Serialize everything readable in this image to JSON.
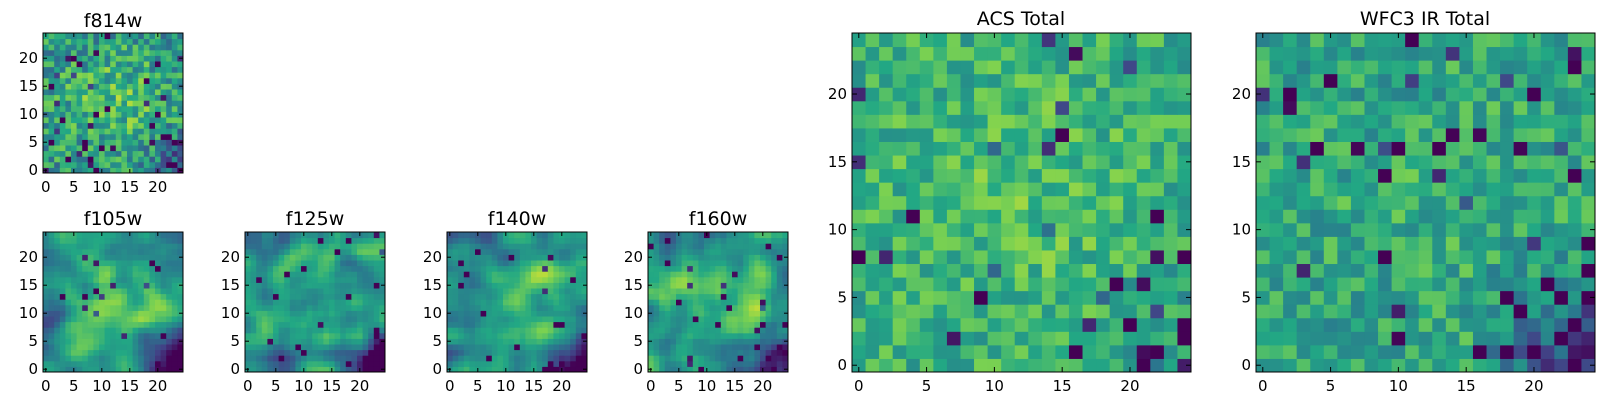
{
  "figure": {
    "colormap": "viridis",
    "colormap_stops": [
      "#440154",
      "#414487",
      "#2a788e",
      "#22a884",
      "#7ad151",
      "#fde725"
    ],
    "frame_color": "#000000",
    "background": "#ffffff"
  },
  "chart_data": [
    {
      "type": "heatmap",
      "title": "f814w",
      "grid_size": 25,
      "x_ticks": [
        "0",
        "5",
        "10",
        "15",
        "20"
      ],
      "y_ticks": [
        "0",
        "5",
        "10",
        "15",
        "20"
      ],
      "xlim": [
        -0.5,
        24.5
      ],
      "ylim": [
        -0.5,
        24.5
      ],
      "pattern": "noisy flux stamp, bright diffuse centre, dark pixels near lower-right",
      "seed": 814
    },
    {
      "type": "heatmap",
      "title": "f105w",
      "grid_size": 25,
      "x_ticks": [
        "0",
        "5",
        "10",
        "15",
        "20"
      ],
      "y_ticks": [
        "0",
        "5",
        "10",
        "15",
        "20"
      ],
      "xlim": [
        -0.5,
        24.5
      ],
      "ylim": [
        -0.5,
        24.5
      ],
      "pattern": "smooth blobs, bright centre, dark lower-right corner",
      "seed": 105
    },
    {
      "type": "heatmap",
      "title": "f125w",
      "grid_size": 25,
      "x_ticks": [
        "0",
        "5",
        "10",
        "15",
        "20"
      ],
      "y_ticks": [
        "0",
        "5",
        "10",
        "15",
        "20"
      ],
      "xlim": [
        -0.5,
        24.5
      ],
      "ylim": [
        -0.5,
        24.5
      ],
      "pattern": "smooth blobs, mixed green, dark lower-right corner",
      "seed": 125
    },
    {
      "type": "heatmap",
      "title": "f140w",
      "grid_size": 25,
      "x_ticks": [
        "0",
        "5",
        "10",
        "15",
        "20"
      ],
      "y_ticks": [
        "0",
        "5",
        "10",
        "15",
        "20"
      ],
      "xlim": [
        -0.5,
        24.5
      ],
      "ylim": [
        -0.5,
        24.5
      ],
      "pattern": "smooth blobs, bright centre-left, dark lower-right corner",
      "seed": 140
    },
    {
      "type": "heatmap",
      "title": "f160w",
      "grid_size": 25,
      "x_ticks": [
        "0",
        "5",
        "10",
        "15",
        "20"
      ],
      "y_ticks": [
        "0",
        "5",
        "10",
        "15",
        "20"
      ],
      "xlim": [
        -0.5,
        24.5
      ],
      "ylim": [
        -0.5,
        24.5
      ],
      "pattern": "smooth blobs, bright centre, dark bottom edge",
      "seed": 160
    },
    {
      "type": "heatmap",
      "title": "ACS Total",
      "grid_size": 25,
      "x_ticks": [
        "0",
        "5",
        "10",
        "15",
        "20"
      ],
      "y_ticks": [
        "0",
        "5",
        "10",
        "15",
        "20"
      ],
      "xlim": [
        -0.5,
        24.5
      ],
      "ylim": [
        -0.5,
        24.5
      ],
      "pattern": "mostly green-yellow, scattered dark pixels",
      "seed": 7
    },
    {
      "type": "heatmap",
      "title": "WFC3 IR Total",
      "grid_size": 25,
      "x_ticks": [
        "0",
        "5",
        "10",
        "15",
        "20"
      ],
      "y_ticks": [
        "0",
        "5",
        "10",
        "15",
        "20"
      ],
      "xlim": [
        -0.5,
        24.5
      ],
      "ylim": [
        -0.5,
        24.5
      ],
      "pattern": "mostly green, dark pixels in upper-left and lower-right",
      "seed": 33
    }
  ]
}
